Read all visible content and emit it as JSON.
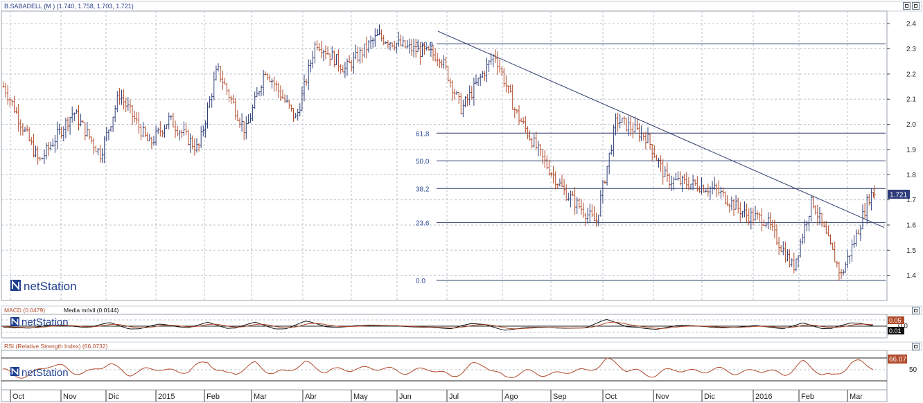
{
  "window": {
    "title": "B.SABADELL (M ) (1.740, 1.758, 1.703, 1.721)"
  },
  "watermark": "netStation",
  "price_panel": {
    "last_price_label": "1.721"
  },
  "macd_panel": {
    "title": "MACD (0.0479)",
    "ma_label": "Media móvil (0.0144)",
    "value_label": "0.05",
    "signal_label": "0.01"
  },
  "rsi_panel": {
    "title": "RSI (Relative Strength Index) (66.0732)",
    "value_label": "66.07"
  },
  "x_axis": {
    "labels": [
      "Oct",
      "Nov",
      "Dic",
      "2015",
      "Feb",
      "Mar",
      "Abr",
      "May",
      "Jun",
      "Jul",
      "Ago",
      "Sep",
      "Oct",
      "Nov",
      "Dic",
      "2016",
      "Feb",
      "Mar"
    ]
  },
  "colors": {
    "up_bar": "#2f3f78",
    "down_bar": "#b14a2a",
    "fib_line": "#2a3a6a",
    "fib_text": "#2d4b9a",
    "macd_line": "#111111",
    "macd_signal": "#b14a2a",
    "rsi_line": "#b14a2a",
    "title_text": "#2a3f8a",
    "badge_bg": "#2e3c7a"
  },
  "chart_data": [
    {
      "type": "bar",
      "subtype": "ohlc",
      "title": "B.SABADELL (M ) (1.740, 1.758, 1.703, 1.721)",
      "ylim": [
        1.3,
        2.45
      ],
      "y_ticks": [
        1.4,
        1.5,
        1.6,
        1.7,
        1.8,
        1.9,
        2.0,
        2.1,
        2.2,
        2.3,
        2.4
      ],
      "grid": true,
      "last": {
        "open": 1.74,
        "high": 1.758,
        "low": 1.703,
        "close": 1.721
      },
      "fibonacci_levels": [
        {
          "label": "100.0",
          "price": 2.32
        },
        {
          "label": "61.8",
          "price": 1.965
        },
        {
          "label": "50.0",
          "price": 1.855
        },
        {
          "label": "38.2",
          "price": 1.745
        },
        {
          "label": "23.6",
          "price": 1.61
        },
        {
          "label": "0.0",
          "price": 1.38
        }
      ],
      "trendline": {
        "start": {
          "period": "Jun 2015",
          "price": 2.37
        },
        "end": {
          "period": "Mar 2016",
          "price": 1.59
        }
      },
      "price_path": [
        [
          "Sep 2014",
          2.15
        ],
        [
          "Oct 2014",
          1.85
        ],
        [
          "Nov 2014",
          2.05
        ],
        [
          "Nov 2014",
          1.88
        ],
        [
          "Dic 2014",
          2.12
        ],
        [
          "Dic 2014",
          1.92
        ],
        [
          "2015",
          2.02
        ],
        [
          "2015",
          1.9
        ],
        [
          "Feb 2015",
          2.22
        ],
        [
          "Feb 2015",
          1.97
        ],
        [
          "Mar 2015",
          2.22
        ],
        [
          "Mar 2015",
          2.02
        ],
        [
          "Abr 2015",
          2.33
        ],
        [
          "Abr 2015",
          2.22
        ],
        [
          "May 2015",
          2.35
        ],
        [
          "Jun 2015",
          2.3
        ],
        [
          "Jun 2015",
          2.27
        ],
        [
          "Jul 2015",
          2.06
        ],
        [
          "Jul 2015",
          2.28
        ],
        [
          "Ago 2015",
          2.05
        ],
        [
          "Ago 2015",
          1.85
        ],
        [
          "Sep 2015",
          1.73
        ],
        [
          "Sep 2015",
          1.61
        ],
        [
          "Oct 2015",
          2.02
        ],
        [
          "Oct 2015",
          1.95
        ],
        [
          "Nov 2015",
          1.78
        ],
        [
          "Nov 2015",
          1.76
        ],
        [
          "Dic 2015",
          1.74
        ],
        [
          "Dic 2015",
          1.64
        ],
        [
          "2016",
          1.62
        ],
        [
          "2016",
          1.43
        ],
        [
          "Feb 2016",
          1.7
        ],
        [
          "Feb 2016",
          1.4
        ],
        [
          "Mar 2016",
          1.55
        ],
        [
          "Mar 2016",
          1.721
        ]
      ]
    },
    {
      "type": "line",
      "title": "MACD (0.0479)",
      "series": [
        {
          "name": "MACD (0.0479)",
          "last": 0.0479
        },
        {
          "name": "Media móvil (0.0144)",
          "last": 0.0144
        }
      ],
      "y_ticks": [
        0.0
      ]
    },
    {
      "type": "line",
      "title": "RSI (Relative Strength Index) (66.0732)",
      "ylim": [
        0,
        100
      ],
      "y_ticks": [
        50
      ],
      "series": [
        {
          "name": "RSI (Relative Strength Index) (66.0732)",
          "last": 66.0732
        }
      ]
    }
  ]
}
